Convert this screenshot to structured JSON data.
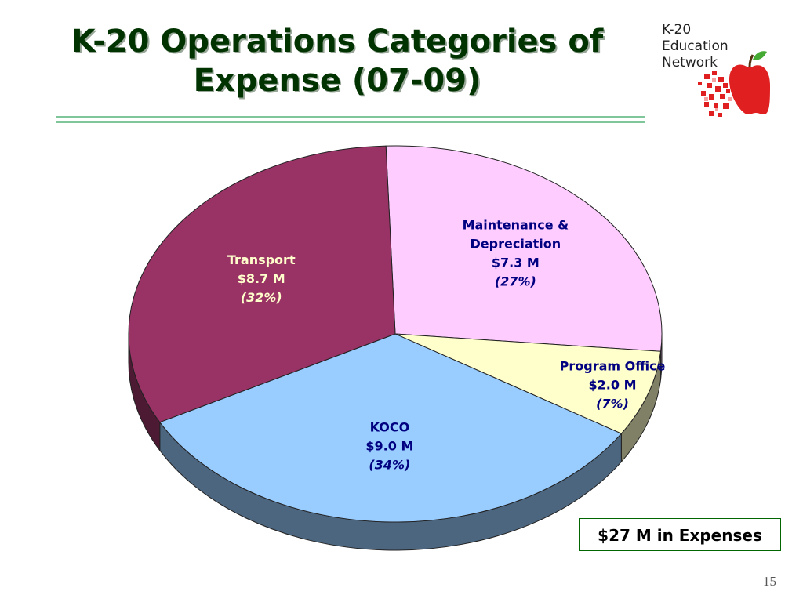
{
  "slide": {
    "title_line1": "K-20 Operations Categories of",
    "title_line2": "Expense (07-09)",
    "total": "$27 M in Expenses",
    "page_number": "15"
  },
  "logo": {
    "line1": "K-20",
    "line2": "Education",
    "line3": "Network"
  },
  "colors": {
    "transport": "#993366",
    "maintenance": "#ffccff",
    "program_office": "#ffffcc",
    "koco": "#99ccff",
    "title": "#003300",
    "label_dark": "#000080",
    "label_light": "#ffffcc",
    "apple_red": "#e02020"
  },
  "chart_data": {
    "type": "pie",
    "title": "",
    "total_label": "$27 M in Expenses",
    "slices": [
      {
        "name": "Maintenance & Depreciation",
        "label_lines": [
          "Maintenance &",
          "Depreciation"
        ],
        "value": 7.3,
        "value_label": "$7.3 M",
        "percent": 27,
        "percent_label": "(27%)",
        "color": "#ffccff"
      },
      {
        "name": "Program Office",
        "label_lines": [
          "Program Office"
        ],
        "value": 2.0,
        "value_label": "$2.0 M",
        "percent": 7,
        "percent_label": "(7%)",
        "color": "#ffffcc"
      },
      {
        "name": "KOCO",
        "label_lines": [
          "KOCO"
        ],
        "value": 9.0,
        "value_label": "$9.0 M",
        "percent": 34,
        "percent_label": "(34%)",
        "color": "#99ccff"
      },
      {
        "name": "Transport",
        "label_lines": [
          "Transport"
        ],
        "value": 8.7,
        "value_label": "$8.7 M",
        "percent": 32,
        "percent_label": "(32%)",
        "color": "#993366"
      }
    ]
  }
}
